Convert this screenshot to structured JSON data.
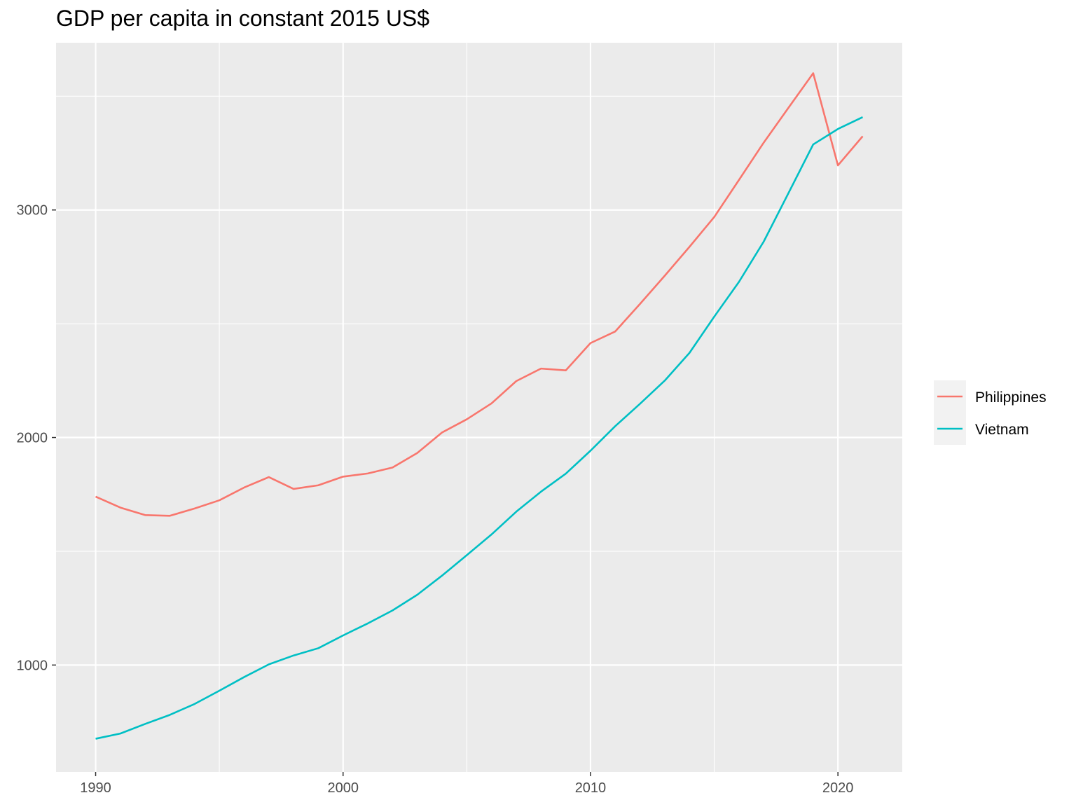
{
  "chart_data": {
    "type": "line",
    "title": "GDP per capita in constant 2015 US$",
    "xlabel": "",
    "ylabel": "",
    "xlim": [
      1988.4,
      2022.6
    ],
    "ylim": [
      530,
      3735
    ],
    "x_ticks": [
      1990,
      2000,
      2010,
      2020
    ],
    "y_ticks": [
      1000,
      2000,
      3000
    ],
    "grid": true,
    "legend_position": "right",
    "background_color": "#EBEBEB",
    "grid_color": "#FFFFFF",
    "x": [
      1990,
      1991,
      1992,
      1993,
      1994,
      1995,
      1996,
      1997,
      1998,
      1999,
      2000,
      2001,
      2002,
      2003,
      2004,
      2005,
      2006,
      2007,
      2008,
      2009,
      2010,
      2011,
      2012,
      2013,
      2014,
      2015,
      2016,
      2017,
      2018,
      2019,
      2020,
      2021
    ],
    "series": [
      {
        "name": "Philippines",
        "color": "#F8766D",
        "values": [
          1740,
          1692,
          1659,
          1656,
          1688,
          1724,
          1780,
          1826,
          1774,
          1790,
          1828,
          1842,
          1868,
          1932,
          2022,
          2080,
          2150,
          2248,
          2303,
          2295,
          2415,
          2466,
          2587,
          2711,
          2838,
          2969,
          3132,
          3296,
          3449,
          3601,
          3196,
          3324
        ]
      },
      {
        "name": "Vietnam",
        "color": "#00BFC4",
        "values": [
          676,
          699,
          741,
          781,
          829,
          887,
          947,
          1003,
          1042,
          1074,
          1130,
          1183,
          1240,
          1309,
          1393,
          1483,
          1574,
          1674,
          1762,
          1841,
          1942,
          2050,
          2148,
          2250,
          2372,
          2531,
          2684,
          2861,
          3074,
          3288,
          3356,
          3408
        ]
      }
    ]
  }
}
